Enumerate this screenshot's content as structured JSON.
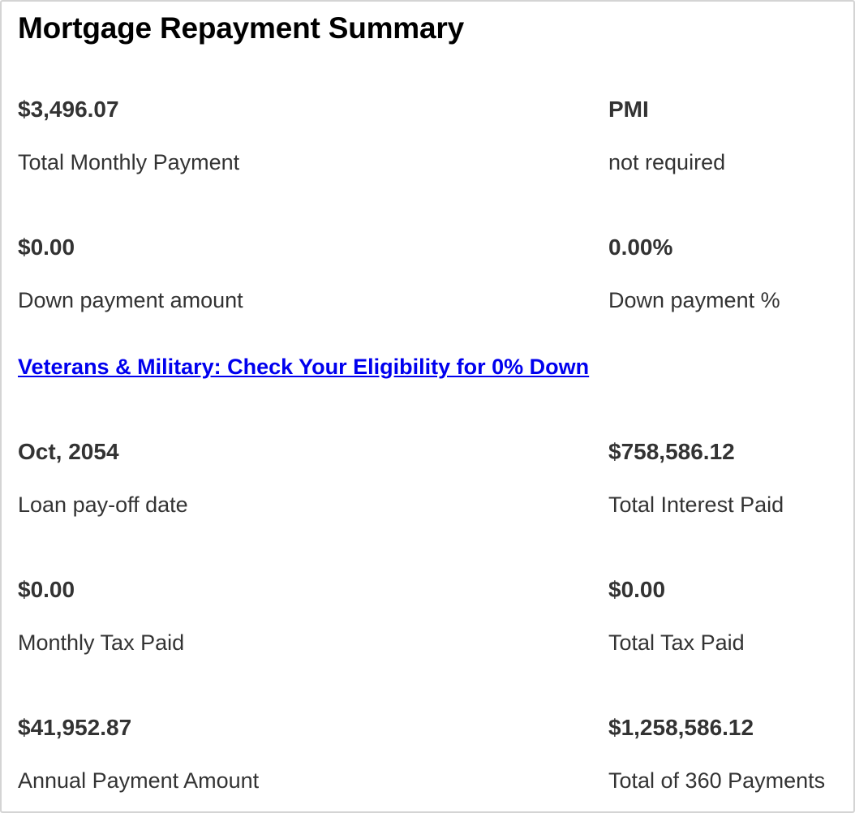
{
  "summary": {
    "title": "Mortgage Repayment Summary",
    "monthly_payment": {
      "value": "$3,496.07",
      "label": "Total Monthly Payment"
    },
    "pmi": {
      "value": "PMI",
      "label": "not required"
    },
    "down_payment_amount": {
      "value": "$0.00",
      "label": "Down payment amount"
    },
    "down_payment_percent": {
      "value": "0.00%",
      "label": "Down payment %"
    },
    "promo_link": "Veterans & Military: Check Your Eligibility for 0% Down",
    "payoff_date": {
      "value": "Oct, 2054",
      "label": "Loan pay-off date"
    },
    "total_interest": {
      "value": "$758,586.12",
      "label": "Total Interest Paid"
    },
    "monthly_tax": {
      "value": "$0.00",
      "label": "Monthly Tax Paid"
    },
    "total_tax": {
      "value": "$0.00",
      "label": "Total Tax Paid"
    },
    "annual_payment": {
      "value": "$41,952.87",
      "label": "Annual Payment Amount"
    },
    "total_payments": {
      "value": "$1,258,586.12",
      "label": "Total of 360 Payments"
    }
  },
  "colors": {
    "text": "#333333",
    "title": "#000000",
    "link": "#0000ee",
    "border": "#d4d4d4"
  }
}
